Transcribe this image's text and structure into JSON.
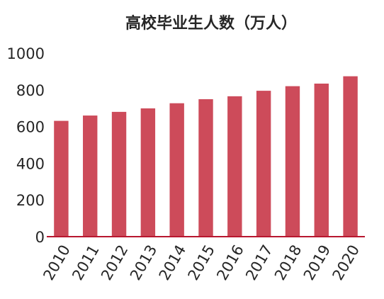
{
  "chart_data": {
    "type": "bar",
    "title": "高校毕业生人数（万人）",
    "xlabel": "",
    "ylabel": "",
    "categories": [
      "2010",
      "2011",
      "2012",
      "2013",
      "2014",
      "2015",
      "2016",
      "2017",
      "2018",
      "2019",
      "2020"
    ],
    "values": [
      631,
      660,
      680,
      699,
      727,
      749,
      765,
      795,
      820,
      834,
      874
    ],
    "ylim": [
      0,
      1000
    ],
    "yticks": [
      "0",
      "200",
      "400",
      "600",
      "800",
      "1000"
    ],
    "grid": false,
    "legend": "none",
    "bar_color": "#cd4b5a",
    "axis_color": "#b8172f"
  }
}
